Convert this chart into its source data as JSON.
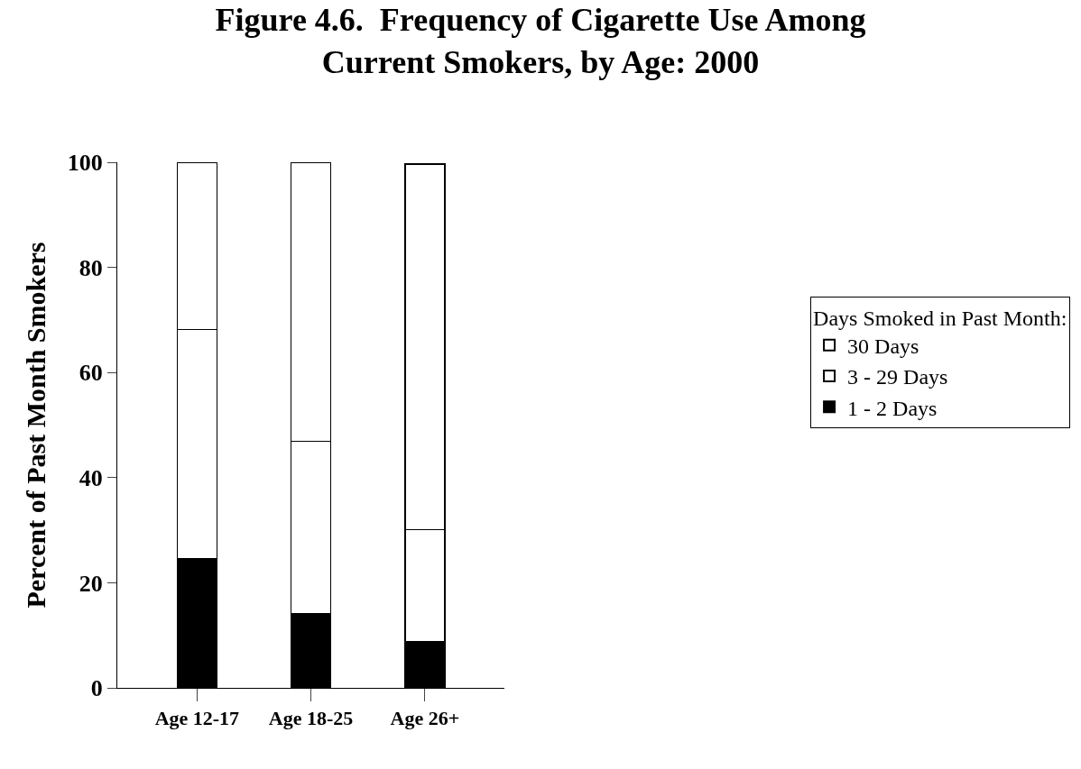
{
  "chart_data": {
    "type": "bar",
    "title": "Figure 4.6.  Frequency of Cigarette Use Among\nCurrent Smokers, by Age: 2000",
    "ylabel": "Percent of Past Month Smokers",
    "legend_title": "Days Smoked in Past Month:",
    "categories": [
      "Age 12-17",
      "Age 18-25",
      "Age 26+"
    ],
    "stacked": true,
    "series": [
      {
        "name": "1 - 2 Days",
        "color": "#000000",
        "values": [
          24.5,
          14.1,
          8.8
        ]
      },
      {
        "name": "3 - 29 Days",
        "color": "#ffffff",
        "values": [
          43.7,
          32.8,
          21.3
        ]
      },
      {
        "name": "30 Days",
        "color": "#ffffff",
        "values": [
          31.8,
          53.1,
          69.6
        ]
      }
    ],
    "ylim": [
      0,
      100
    ],
    "yticks": [
      0,
      20,
      40,
      60,
      80,
      100
    ],
    "grid": false,
    "legend": "right"
  }
}
